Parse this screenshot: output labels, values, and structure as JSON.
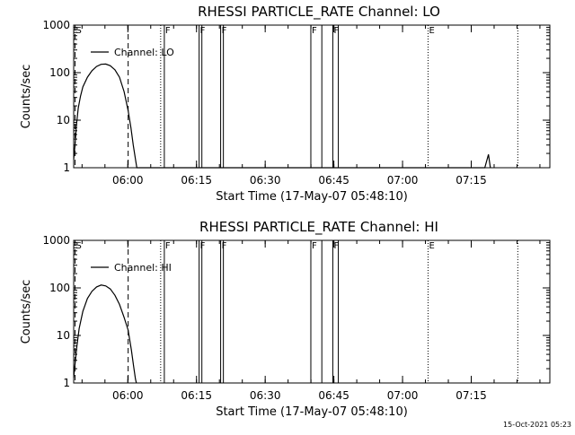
{
  "timestamp": "15-Oct-2021 05:23",
  "chart_data": [
    {
      "type": "line",
      "title": "RHESSI PARTICLE_RATE Channel: LO",
      "xlabel": "Start Time (17-May-07 05:48:10)",
      "ylabel": "Counts/sec",
      "yscale": "log",
      "ylim": [
        1,
        1000
      ],
      "xlim_minutes_after_start": [
        0,
        104
      ],
      "x_ticks": [
        {
          "m": 11.83,
          "label": "06:00"
        },
        {
          "m": 26.83,
          "label": "06:15"
        },
        {
          "m": 41.83,
          "label": "06:30"
        },
        {
          "m": 56.83,
          "label": "06:45"
        },
        {
          "m": 71.83,
          "label": "07:00"
        },
        {
          "m": 86.83,
          "label": "07:15"
        }
      ],
      "y_ticks": [
        {
          "v": 1,
          "label": "1"
        },
        {
          "v": 10,
          "label": "10"
        },
        {
          "v": 100,
          "label": "100"
        },
        {
          "v": 1000,
          "label": "1000"
        }
      ],
      "legend": "Channel: LO",
      "series": [
        {
          "name": "Channel: LO",
          "points": [
            [
              0.0,
              1.5
            ],
            [
              0.3,
              3
            ],
            [
              0.6,
              8
            ],
            [
              1.0,
              18
            ],
            [
              1.5,
              32
            ],
            [
              2.0,
              50
            ],
            [
              3.0,
              80
            ],
            [
              4.0,
              110
            ],
            [
              5.0,
              135
            ],
            [
              6.0,
              150
            ],
            [
              7.0,
              152
            ],
            [
              8.0,
              140
            ],
            [
              9.0,
              115
            ],
            [
              10.0,
              80
            ],
            [
              11.0,
              40
            ],
            [
              11.9,
              16
            ],
            [
              12.5,
              7
            ],
            [
              13.0,
              3
            ],
            [
              13.5,
              1.5
            ],
            [
              13.8,
              1
            ],
            [
              89.8,
              1
            ],
            [
              90.6,
              1.9
            ],
            [
              91.0,
              1
            ]
          ]
        }
      ],
      "markers": [
        {
          "m": 0.3,
          "style": "dashed",
          "label": "S"
        },
        {
          "m": 11.9,
          "style": "dashed",
          "label": ""
        },
        {
          "m": 19.0,
          "style": "dotted",
          "label": ""
        },
        {
          "m": 19.8,
          "style": "solid",
          "label": "F"
        },
        {
          "m": 27.4,
          "style": "solid",
          "label": "F"
        },
        {
          "m": 28.0,
          "style": "solid",
          "label": ""
        },
        {
          "m": 32.1,
          "style": "solid",
          "label": "F"
        },
        {
          "m": 32.7,
          "style": "solid",
          "label": ""
        },
        {
          "m": 51.8,
          "style": "solid",
          "label": "F"
        },
        {
          "m": 54.2,
          "style": "solid",
          "label": ""
        },
        {
          "m": 56.6,
          "style": "solid",
          "label": "F"
        },
        {
          "m": 57.8,
          "style": "solid",
          "label": ""
        },
        {
          "m": 77.4,
          "style": "dotted",
          "label": "E"
        },
        {
          "m": 97.0,
          "style": "dotted",
          "label": ""
        }
      ]
    },
    {
      "type": "line",
      "title": "RHESSI PARTICLE_RATE Channel: HI",
      "xlabel": "Start Time (17-May-07 05:48:10)",
      "ylabel": "Counts/sec",
      "yscale": "log",
      "ylim": [
        1,
        1000
      ],
      "xlim_minutes_after_start": [
        0,
        104
      ],
      "x_ticks": [
        {
          "m": 11.83,
          "label": "06:00"
        },
        {
          "m": 26.83,
          "label": "06:15"
        },
        {
          "m": 41.83,
          "label": "06:30"
        },
        {
          "m": 56.83,
          "label": "06:45"
        },
        {
          "m": 71.83,
          "label": "07:00"
        },
        {
          "m": 86.83,
          "label": "07:15"
        }
      ],
      "y_ticks": [
        {
          "v": 1,
          "label": "1"
        },
        {
          "v": 10,
          "label": "10"
        },
        {
          "v": 100,
          "label": "100"
        },
        {
          "v": 1000,
          "label": "1000"
        }
      ],
      "legend": "Channel: HI",
      "series": [
        {
          "name": "Channel: HI",
          "points": [
            [
              0.0,
              1.3
            ],
            [
              0.3,
              2.5
            ],
            [
              0.7,
              6
            ],
            [
              1.2,
              14
            ],
            [
              2.0,
              32
            ],
            [
              3.0,
              60
            ],
            [
              4.0,
              85
            ],
            [
              5.0,
              105
            ],
            [
              6.0,
              115
            ],
            [
              7.0,
              110
            ],
            [
              8.0,
              95
            ],
            [
              9.0,
              70
            ],
            [
              10.0,
              45
            ],
            [
              11.0,
              24
            ],
            [
              11.9,
              13
            ],
            [
              12.6,
              5
            ],
            [
              13.1,
              2.2
            ],
            [
              13.5,
              1.2
            ],
            [
              13.7,
              1
            ]
          ]
        }
      ],
      "markers": [
        {
          "m": 0.3,
          "style": "dashed",
          "label": "S"
        },
        {
          "m": 11.9,
          "style": "dashed",
          "label": ""
        },
        {
          "m": 19.0,
          "style": "dotted",
          "label": ""
        },
        {
          "m": 19.8,
          "style": "solid",
          "label": "F"
        },
        {
          "m": 27.4,
          "style": "solid",
          "label": "F"
        },
        {
          "m": 28.0,
          "style": "solid",
          "label": ""
        },
        {
          "m": 32.1,
          "style": "solid",
          "label": "F"
        },
        {
          "m": 32.7,
          "style": "solid",
          "label": ""
        },
        {
          "m": 51.8,
          "style": "solid",
          "label": "F"
        },
        {
          "m": 54.2,
          "style": "solid",
          "label": ""
        },
        {
          "m": 56.6,
          "style": "solid",
          "label": "F"
        },
        {
          "m": 57.8,
          "style": "solid",
          "label": ""
        },
        {
          "m": 77.4,
          "style": "dotted",
          "label": "E"
        },
        {
          "m": 97.0,
          "style": "dotted",
          "label": ""
        }
      ]
    }
  ]
}
